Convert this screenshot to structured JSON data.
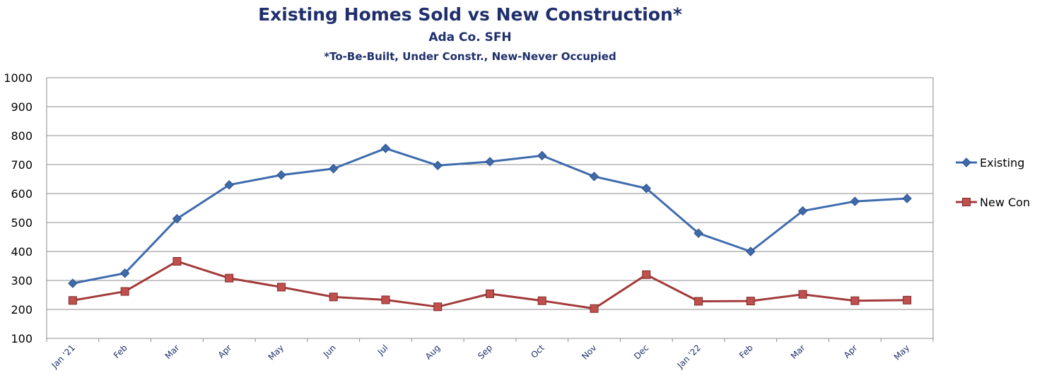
{
  "chart_data": {
    "type": "line",
    "title": "Existing Homes Sold vs New Construction*",
    "subtitle": "Ada Co. SFH",
    "note": "*To-Be-Built, Under Constr., New-Never Occupied",
    "categories": [
      "Jan '21",
      "Feb",
      "Mar",
      "Apr",
      "May",
      "Jun",
      "Jul",
      "Aug",
      "Sep",
      "Oct",
      "Nov",
      "Dec",
      "Jan '22",
      "Feb",
      "Mar",
      "Apr",
      "May"
    ],
    "ylim": [
      100,
      1000
    ],
    "yticks": [
      100,
      200,
      300,
      400,
      500,
      600,
      700,
      800,
      900,
      1000
    ],
    "grid": true,
    "legend_position": "right",
    "series": [
      {
        "name": "Existing",
        "color": "#3f6bad",
        "marker": "diamond",
        "values": [
          290,
          325,
          513,
          630,
          664,
          686,
          756,
          697,
          710,
          731,
          659,
          618,
          463,
          400,
          540,
          573,
          583
        ]
      },
      {
        "name": "New Con",
        "color": "#a33a3a",
        "marker": "square",
        "values": [
          231,
          262,
          366,
          308,
          277,
          243,
          233,
          209,
          254,
          230,
          203,
          320,
          228,
          229,
          252,
          230,
          232
        ]
      }
    ]
  }
}
